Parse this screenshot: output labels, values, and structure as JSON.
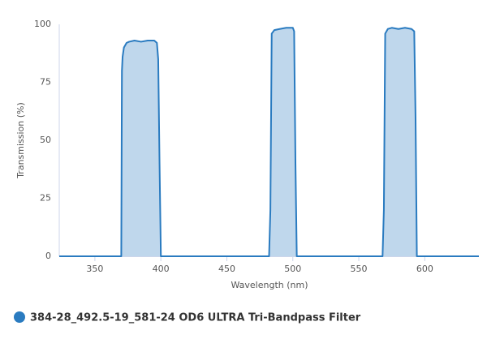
{
  "chart_data": {
    "type": "area",
    "x_label": "Wavelength (nm)",
    "y_label": "Transmission (%)",
    "x": [
      323,
      369,
      370,
      370.5,
      371,
      372,
      374,
      376,
      380,
      385,
      390,
      395,
      397,
      398,
      399,
      400,
      482,
      483,
      484,
      486,
      490,
      495,
      500,
      501,
      502,
      503,
      568,
      569,
      570,
      572,
      575,
      580,
      585,
      590,
      592,
      593,
      594,
      641
    ],
    "series": [
      {
        "name": "384-28_492.5-19_581-24 OD6 ULTRA Tri-Bandpass Filter",
        "color": "#2a7bc0",
        "values": [
          0,
          0,
          0,
          80,
          86,
          90,
          92,
          92.5,
          93,
          92.5,
          93,
          93,
          92,
          85,
          40,
          0,
          0,
          20,
          96,
          97.5,
          98,
          98.5,
          98.5,
          97,
          40,
          0,
          0,
          20,
          96,
          98,
          98.5,
          98,
          98.5,
          98,
          97,
          60,
          0,
          0
        ]
      }
    ],
    "xlim": [
      323,
      641
    ],
    "ylim": [
      0,
      100
    ],
    "xticks": [
      350,
      400,
      450,
      500,
      550,
      600
    ],
    "yticks": [
      0,
      25,
      50,
      75,
      100
    ],
    "grid": false
  }
}
